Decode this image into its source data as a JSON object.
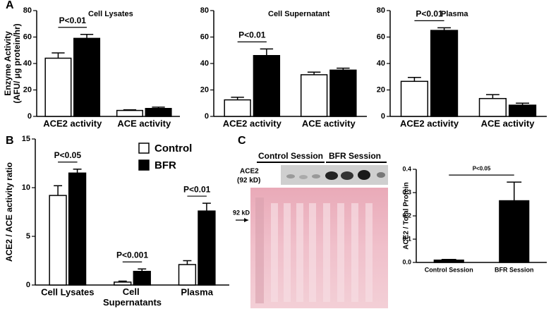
{
  "chart_data": [
    {
      "type": "bar",
      "panel_label": "A",
      "title": "Cell Lysates",
      "ylabel": [
        "Enzyme Activity",
        "(AFU/ μg protein/hr)"
      ],
      "categories": [
        "ACE2 activity",
        "ACE activity"
      ],
      "series": [
        {
          "color": "#ffffff",
          "values": [
            44,
            4.5
          ],
          "errors": [
            4,
            0.5
          ]
        },
        {
          "color": "#000000",
          "values": [
            59,
            6
          ],
          "errors": [
            3,
            1
          ]
        }
      ],
      "ylim": [
        0,
        80
      ],
      "yticks": [
        0,
        20,
        40,
        60,
        80
      ],
      "annotations": [
        {
          "text": "P<0.01",
          "category": 0
        }
      ]
    },
    {
      "type": "bar",
      "title": "Cell Supernatant",
      "categories": [
        "ACE2 activity",
        "ACE activity"
      ],
      "series": [
        {
          "color": "#ffffff",
          "values": [
            12.5,
            31.5
          ],
          "errors": [
            2,
            2
          ]
        },
        {
          "color": "#000000",
          "values": [
            46,
            35
          ],
          "errors": [
            5,
            1.5
          ]
        }
      ],
      "ylim": [
        0,
        80
      ],
      "yticks": [
        0,
        20,
        40,
        60,
        80
      ],
      "annotations": [
        {
          "text": "P<0.01",
          "category": 0
        }
      ]
    },
    {
      "type": "bar",
      "title": "Plasma",
      "categories": [
        "ACE2 activity",
        "ACE activity"
      ],
      "series": [
        {
          "color": "#ffffff",
          "values": [
            26.5,
            13.5
          ],
          "errors": [
            3,
            3
          ]
        },
        {
          "color": "#000000",
          "values": [
            65,
            8.5
          ],
          "errors": [
            2,
            1.5
          ]
        }
      ],
      "ylim": [
        0,
        80
      ],
      "yticks": [
        0,
        20,
        40,
        60,
        80
      ],
      "annotations": [
        {
          "text": "P<0.01",
          "category": 0
        }
      ]
    },
    {
      "type": "bar",
      "panel_label": "B",
      "ylabel": "ACE2 / ACE activity ratio",
      "categories": [
        "Cell Lysates",
        "Cell Supernatants",
        "Plasma"
      ],
      "series": [
        {
          "name": "Control",
          "color": "#ffffff",
          "values": [
            9.2,
            0.3,
            2.1
          ],
          "errors": [
            1,
            0.1,
            0.4
          ]
        },
        {
          "name": "BFR",
          "color": "#000000",
          "values": [
            11.5,
            1.4,
            7.6
          ],
          "errors": [
            0.4,
            0.25,
            0.8
          ]
        }
      ],
      "ylim": [
        0,
        15
      ],
      "yticks": [
        0,
        5,
        10,
        15
      ],
      "legend": "top-right",
      "annotations": [
        {
          "text": "P<0.05",
          "category": 0
        },
        {
          "text": "P<0.001",
          "category": 1
        },
        {
          "text": "P<0.01",
          "category": 2
        }
      ]
    },
    {
      "type": "bar",
      "ylabel": "ACE2 / Total Protein",
      "categories": [
        "Control Session",
        "BFR Session"
      ],
      "series": [
        {
          "color": "#000000",
          "values": [
            0.01,
            0.265
          ],
          "errors": [
            0.003,
            0.08
          ]
        }
      ],
      "ylim": [
        0,
        0.4
      ],
      "yticks": [
        {
          "value": 0,
          "label": "0.0"
        },
        0.1,
        0.2,
        0.3,
        0.4
      ],
      "annotations": [
        {
          "text": "P<0.05",
          "categories": [
            0,
            1
          ]
        }
      ]
    }
  ],
  "blot": {
    "panel_label": "C",
    "group_labels": [
      "Control Session",
      "BFR Session"
    ],
    "band_label": [
      "ACE2",
      "(92 kD)"
    ],
    "marker_label": "92 kD"
  }
}
